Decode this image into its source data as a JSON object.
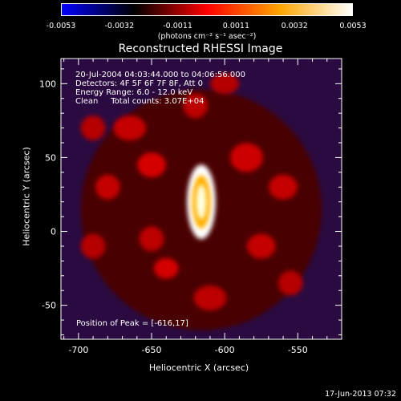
{
  "colorbar": {
    "colors": [
      "#0000ff",
      "#000000",
      "#ff0000",
      "#ffa500",
      "#ffffff"
    ],
    "ticks": [
      "-0.0053",
      "-0.0032",
      "-0.0011",
      "0.0011",
      "0.0032",
      "0.0053"
    ],
    "units_label": "(photons cm⁻² s⁻¹ asec⁻²)"
  },
  "title": "Reconstructed RHESSI Image",
  "info_lines": [
    "20-Jul-2004 04:03:44.000 to 04:06:56.000",
    "Detectors: 4F 5F 6F 7F 8F, Att 0",
    "Energy Range: 6.0 - 12.0 keV",
    "Clean     Total counts: 3.07E+04"
  ],
  "peak_text": "Position of Peak = [-616,17]",
  "timestamp": "17-Jun-2013 07:32",
  "chart_data": {
    "type": "heatmap",
    "title": "Reconstructed RHESSI Image",
    "xlabel": "Heliocentric X (arcsec)",
    "ylabel": "Heliocentric Y (arcsec)",
    "xlim": [
      -712,
      -520
    ],
    "ylim": [
      -73,
      117
    ],
    "xticks": [
      -700,
      -650,
      -600,
      -550
    ],
    "yticks": [
      -50,
      0,
      50,
      100
    ],
    "colorbar_range": [
      -0.0053,
      0.0053
    ],
    "peak_position": [
      -616,
      17
    ],
    "peak_value": 0.0053,
    "sources": [
      {
        "x": -616,
        "y": 20,
        "sx": 7,
        "sy": 18,
        "amp": 0.0053
      },
      {
        "x": -650,
        "y": 45,
        "sx": 7,
        "sy": 6,
        "amp": 0.0012
      },
      {
        "x": -680,
        "y": 30,
        "sx": 6,
        "sy": 6,
        "amp": 0.001
      },
      {
        "x": -665,
        "y": 70,
        "sx": 8,
        "sy": 6,
        "amp": 0.001
      },
      {
        "x": -620,
        "y": 85,
        "sx": 6,
        "sy": 6,
        "amp": 0.0009
      },
      {
        "x": -585,
        "y": 50,
        "sx": 8,
        "sy": 7,
        "amp": 0.0011
      },
      {
        "x": -560,
        "y": 30,
        "sx": 7,
        "sy": 6,
        "amp": 0.001
      },
      {
        "x": -575,
        "y": -10,
        "sx": 7,
        "sy": 6,
        "amp": 0.001
      },
      {
        "x": -650,
        "y": -5,
        "sx": 6,
        "sy": 6,
        "amp": 0.0009
      },
      {
        "x": -690,
        "y": -10,
        "sx": 6,
        "sy": 6,
        "amp": 0.0008
      },
      {
        "x": -640,
        "y": -25,
        "sx": 6,
        "sy": 5,
        "amp": 0.0012
      },
      {
        "x": -610,
        "y": -45,
        "sx": 8,
        "sy": 6,
        "amp": 0.0009
      },
      {
        "x": -555,
        "y": -35,
        "sx": 6,
        "sy": 6,
        "amp": 0.0008
      },
      {
        "x": -690,
        "y": 70,
        "sx": 6,
        "sy": 6,
        "amp": 0.0008
      },
      {
        "x": -600,
        "y": 100,
        "sx": 7,
        "sy": 5,
        "amp": 0.0008
      }
    ]
  }
}
